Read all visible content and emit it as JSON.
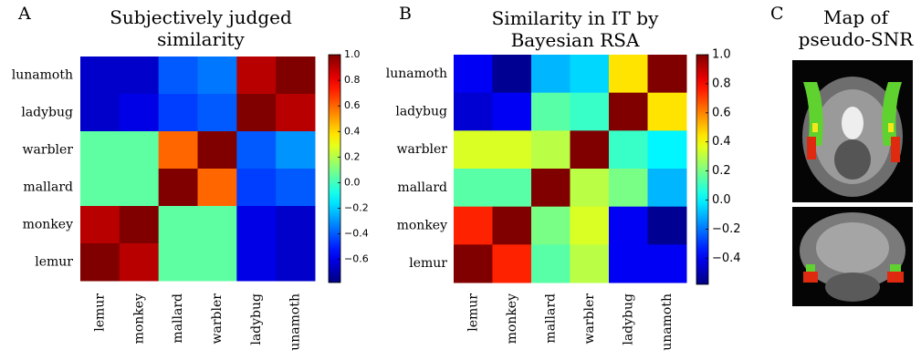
{
  "chart_data": [
    {
      "type": "heatmap",
      "panel": "A",
      "title": "Subjectively judged similarity",
      "colormap": "jet",
      "rows": [
        "lunamoth",
        "ladybug",
        "warbler",
        "mallard",
        "monkey",
        "lemur"
      ],
      "categories": [
        "lemur",
        "monkey",
        "mallard",
        "warbler",
        "ladybug",
        "unamoth"
      ],
      "values": [
        [
          -0.65,
          -0.65,
          -0.4,
          -0.35,
          0.9,
          1.0
        ],
        [
          -0.65,
          -0.6,
          -0.45,
          -0.4,
          1.0,
          0.9
        ],
        [
          0.05,
          0.05,
          0.6,
          1.0,
          -0.4,
          -0.3
        ],
        [
          0.05,
          0.05,
          1.0,
          0.6,
          -0.45,
          -0.4
        ],
        [
          0.9,
          1.0,
          0.05,
          0.05,
          -0.6,
          -0.65
        ],
        [
          1.0,
          0.9,
          0.05,
          0.05,
          -0.6,
          -0.65
        ]
      ],
      "zlim": [
        -0.78,
        1.0
      ],
      "zticks": [
        {
          "value": 1,
          "label": "1.0"
        },
        0.8,
        0.6,
        0.4,
        0.2,
        {
          "value": 0,
          "label": "0.0"
        },
        {
          "value": -0.2,
          "label": "−0.2"
        },
        {
          "value": -0.4,
          "label": "−0.4"
        },
        {
          "value": -0.6,
          "label": "−0.6"
        }
      ]
    },
    {
      "type": "heatmap",
      "panel": "B",
      "title": "Similarity in IT by Bayesian RSA",
      "colormap": "jet",
      "rows": [
        "lunamoth",
        "ladybug",
        "warbler",
        "mallard",
        "monkey",
        "lemur"
      ],
      "categories": [
        "lemur",
        "monkey",
        "mallard",
        "warbler",
        "ladybug",
        "unamoth"
      ],
      "values": [
        [
          -0.4,
          -0.55,
          -0.1,
          -0.05,
          0.45,
          1.0
        ],
        [
          -0.45,
          -0.4,
          0.15,
          0.1,
          1.0,
          0.45
        ],
        [
          0.35,
          0.35,
          0.3,
          1.0,
          0.1,
          0.0
        ],
        [
          0.15,
          0.15,
          1.0,
          0.3,
          0.2,
          -0.1
        ],
        [
          0.75,
          1.0,
          0.2,
          0.35,
          -0.4,
          -0.55
        ],
        [
          1.0,
          0.75,
          0.15,
          0.3,
          -0.4,
          -0.4
        ]
      ],
      "zlim": [
        -0.58,
        1.0
      ],
      "zticks": [
        {
          "value": 1,
          "label": "1.0"
        },
        0.8,
        0.6,
        0.4,
        0.2,
        {
          "value": 0,
          "label": "0.0"
        },
        {
          "value": -0.2,
          "label": "−0.2"
        },
        {
          "value": -0.4,
          "label": "−0.4"
        }
      ]
    }
  ],
  "panel_c": {
    "panel": "C",
    "title": "Map of pseudo-SNR"
  }
}
